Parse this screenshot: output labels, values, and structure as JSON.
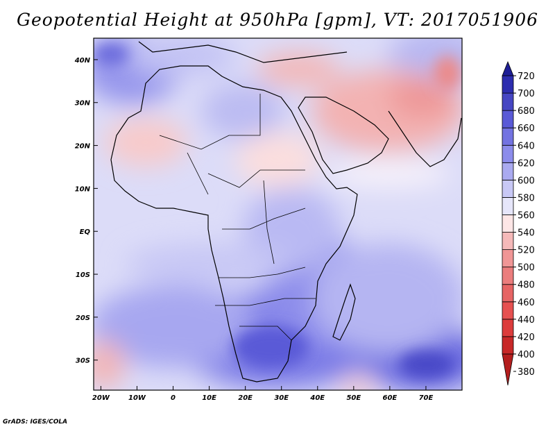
{
  "title": "Geopotential Height at 950hPa [gpm], VT: 2017051906",
  "credit": "GrADS: IGES/COLA",
  "map": {
    "lat_labels": [
      "40N",
      "30N",
      "20N",
      "10N",
      "EQ",
      "10S",
      "20S",
      "30S"
    ],
    "lat_values": [
      40,
      30,
      20,
      10,
      0,
      -10,
      -20,
      -30
    ],
    "lon_labels": [
      "20W",
      "10W",
      "0",
      "10E",
      "20E",
      "30E",
      "40E",
      "50E",
      "60E",
      "70E"
    ],
    "lon_values": [
      -20,
      -10,
      0,
      10,
      20,
      30,
      40,
      50,
      60,
      70
    ],
    "lon_range": [
      -22,
      80
    ],
    "lat_range": [
      -37,
      45
    ]
  },
  "colorbar": {
    "levels": [
      380,
      400,
      420,
      440,
      460,
      480,
      500,
      520,
      540,
      560,
      580,
      600,
      620,
      640,
      660,
      680,
      700,
      720
    ],
    "labels": [
      "380",
      "400",
      "420",
      "440",
      "460",
      "480",
      "500",
      "520",
      "540",
      "560",
      "580",
      "600",
      "620",
      "640",
      "660",
      "680",
      "700",
      "720"
    ],
    "colors": [
      "#b41e1e",
      "#c82828",
      "#dc3c3c",
      "#e65050",
      "#e66464",
      "#eb7d7d",
      "#f09696",
      "#f5b9b9",
      "#fde6e6",
      "#e6e6fa",
      "#c8c8f5",
      "#aaaaf0",
      "#8c8ceb",
      "#7373e1",
      "#5a5ad7",
      "#4646c3",
      "#2d2daf",
      "#1e1e96"
    ]
  }
}
